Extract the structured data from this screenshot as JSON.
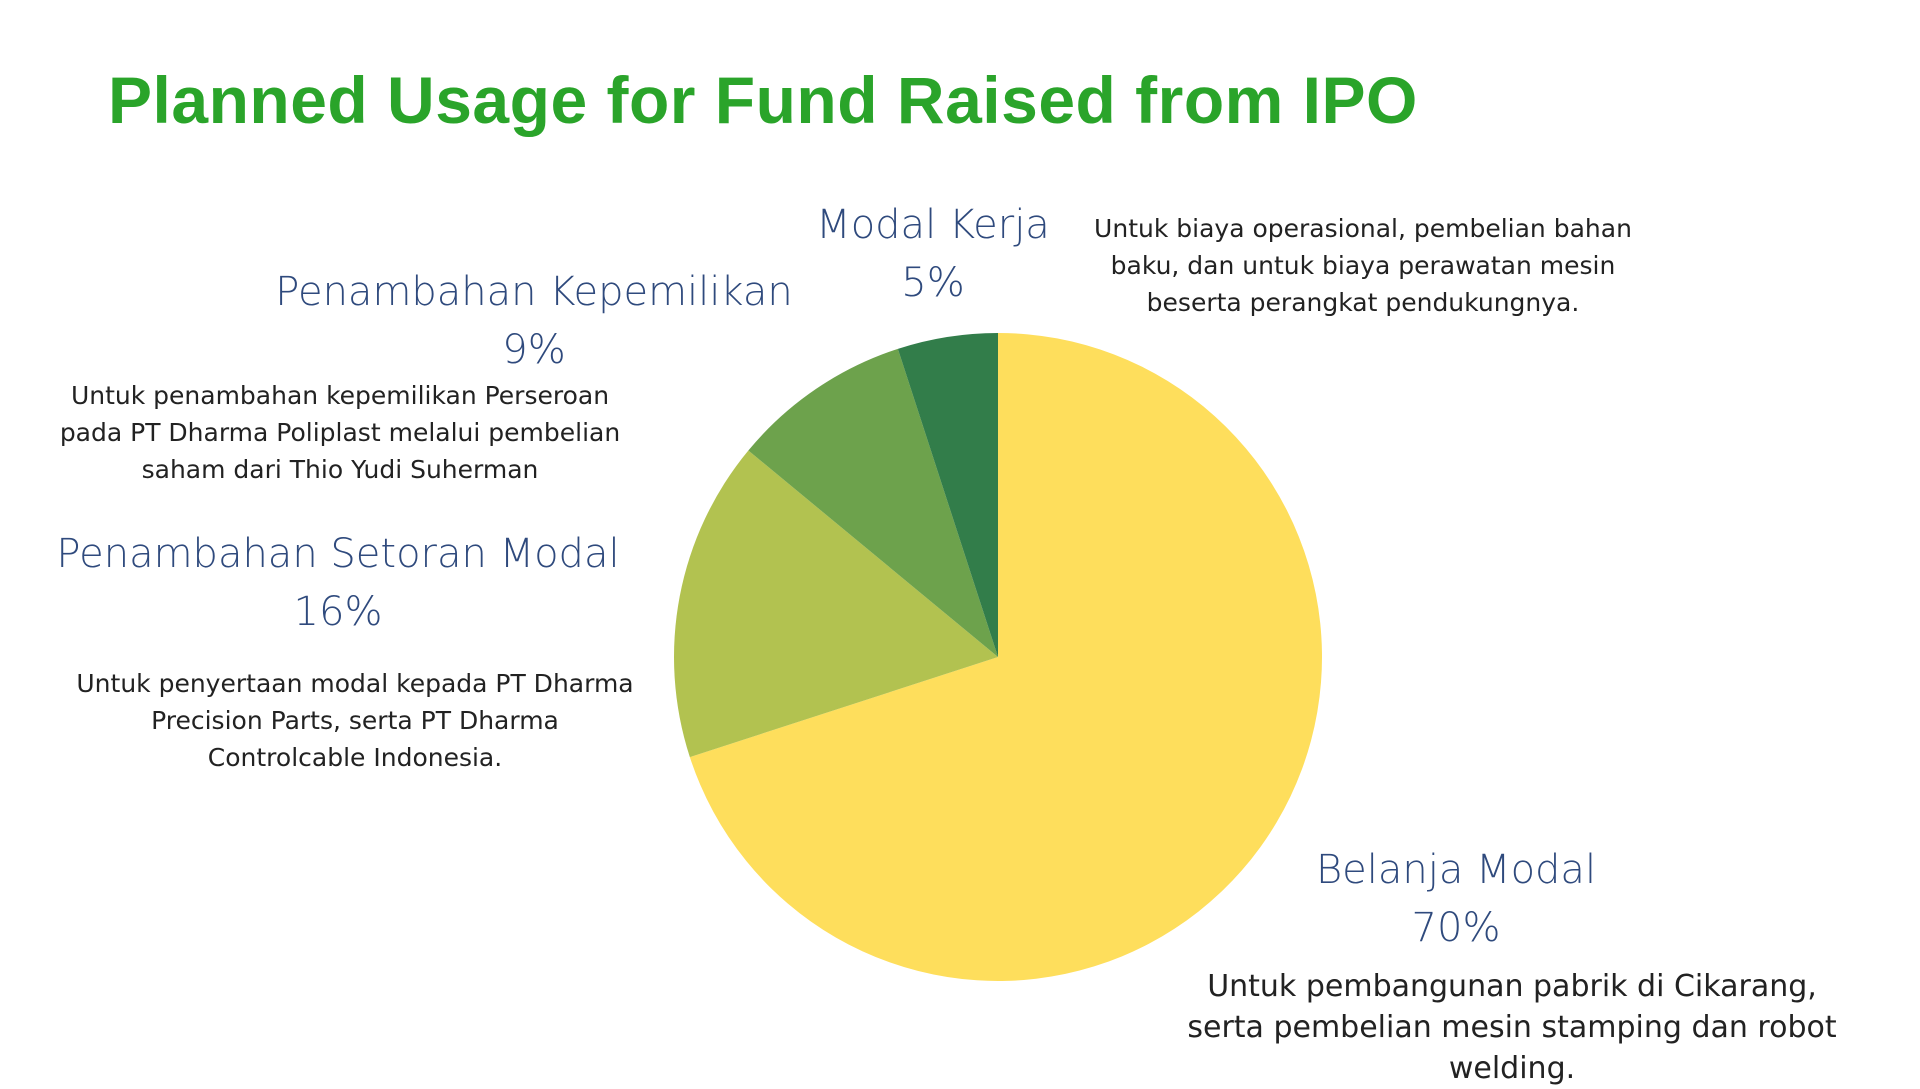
{
  "title": "Planned Usage for Fund Raised from IPO",
  "colors": {
    "title": "#2aa42a",
    "label": "#2f4a7d"
  },
  "chart_data": {
    "type": "pie",
    "title": "Planned Usage for Fund Raised from IPO",
    "slices": [
      {
        "name": "Belanja Modal",
        "value": 70,
        "value_label": "70%",
        "color": "#fede5c",
        "description": "Untuk pembangunan pabrik di Cikarang, serta pembelian mesin stamping dan robot welding."
      },
      {
        "name": "Penambahan Setoran Modal",
        "value": 16,
        "value_label": "16%",
        "color": "#b2c250",
        "description": "Untuk penyertaan modal kepada PT Dharma Precision Parts, serta PT Dharma Controlcable Indonesia."
      },
      {
        "name": "Penambahan Kepemilikan",
        "value": 9,
        "value_label": "9%",
        "color": "#6da24c",
        "description": "Untuk penambahan kepemilikan Perseroan pada PT Dharma Poliplast melalui pembelian saham dari Thio Yudi Suherman"
      },
      {
        "name": "Modal Kerja",
        "value": 5,
        "value_label": "5%",
        "color": "#327d4a",
        "description": "Untuk biaya operasional, pembelian bahan baku, dan untuk biaya perawatan mesin beserta perangkat pendukungnya."
      }
    ]
  }
}
